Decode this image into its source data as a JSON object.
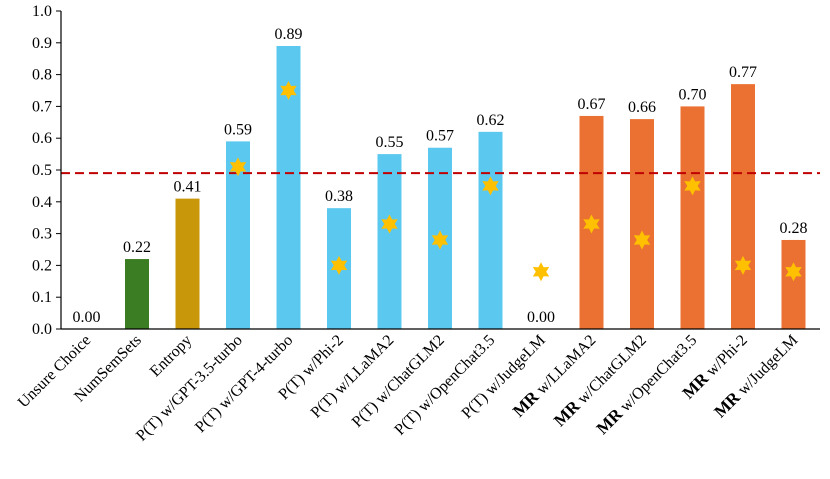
{
  "chart_data": {
    "type": "bar",
    "title": "",
    "xlabel": "",
    "ylabel": "",
    "ylim": [
      0,
      1.0
    ],
    "y_ticks": [
      "0.0",
      "0.1",
      "0.2",
      "0.3",
      "0.4",
      "0.5",
      "0.6",
      "0.7",
      "0.8",
      "0.9",
      "1.0"
    ],
    "grid": false,
    "categories": [
      {
        "prefix": "",
        "label": "Unsure Choice"
      },
      {
        "prefix": "",
        "label": "NumSemSets"
      },
      {
        "prefix": "",
        "label": "Entropy"
      },
      {
        "prefix": "",
        "label": "P(T) w/GPT-3.5-turbo"
      },
      {
        "prefix": "",
        "label": "P(T) w/GPT-4-turbo"
      },
      {
        "prefix": "",
        "label": "P(T) w/Phi-2"
      },
      {
        "prefix": "",
        "label": "P(T) w/LLaMA2"
      },
      {
        "prefix": "",
        "label": "P(T) w/ChatGLM2"
      },
      {
        "prefix": "",
        "label": "P(T) w/OpenChat3.5"
      },
      {
        "prefix": "",
        "label": "P(T) w/JudgeLM"
      },
      {
        "prefix": "MR",
        "label": " w/LLaMA2"
      },
      {
        "prefix": "MR",
        "label": " w/ChatGLM2"
      },
      {
        "prefix": "MR",
        "label": " w/OpenChat3.5"
      },
      {
        "prefix": "MR",
        "label": "  w/Phi-2"
      },
      {
        "prefix": "MR",
        "label": "  w/JudgeLM"
      }
    ],
    "values": [
      0.0,
      0.22,
      0.41,
      0.59,
      0.89,
      0.38,
      0.55,
      0.57,
      0.62,
      0.0,
      0.67,
      0.66,
      0.7,
      0.77,
      0.28
    ],
    "value_labels": [
      "0.00",
      "0.22",
      "0.41",
      "0.59",
      "0.89",
      "0.38",
      "0.55",
      "0.57",
      "0.62",
      "0.00",
      "0.67",
      "0.66",
      "0.70",
      "0.77",
      "0.28"
    ],
    "bar_colors": [
      "#ffffff",
      "#3a7d22",
      "#c8970a",
      "#5bc8ef",
      "#5bc8ef",
      "#5bc8ef",
      "#5bc8ef",
      "#5bc8ef",
      "#5bc8ef",
      "#5bc8ef",
      "#ea7131",
      "#ea7131",
      "#ea7131",
      "#ea7131",
      "#ea7131"
    ],
    "star_markers": [
      null,
      null,
      null,
      0.51,
      0.75,
      0.2,
      0.33,
      0.28,
      0.45,
      0.18,
      0.33,
      0.28,
      0.45,
      0.2,
      0.18
    ],
    "star_color": "#ffc000",
    "reference_line": {
      "value": 0.49,
      "color": "#c00000",
      "style": "dashed"
    }
  }
}
